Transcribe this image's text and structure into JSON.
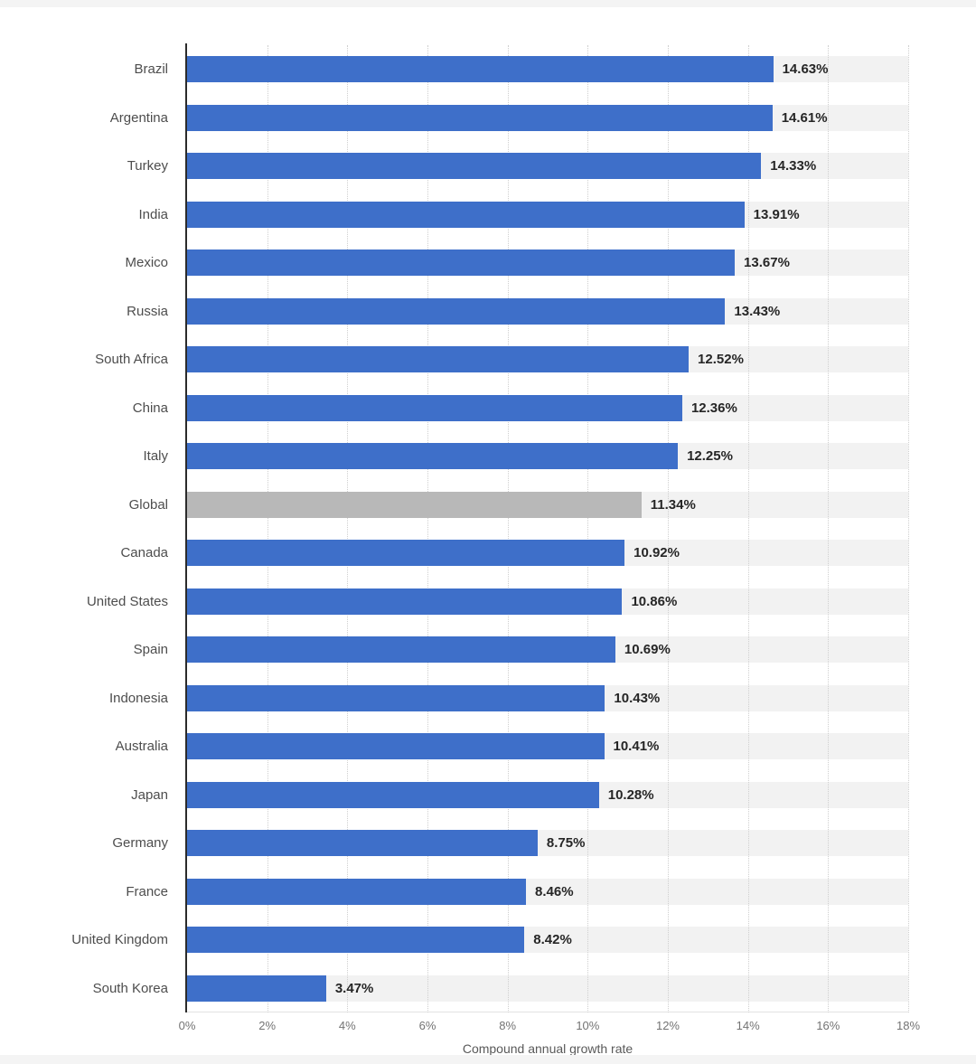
{
  "page": {
    "background": "#ffffff"
  },
  "chart_data": {
    "type": "bar",
    "orientation": "horizontal",
    "title": "",
    "xlabel": "Compound annual growth rate",
    "ylabel": "",
    "xlim": [
      0,
      18
    ],
    "grid": true,
    "legend": false,
    "categories": [
      "Brazil",
      "Argentina",
      "Turkey",
      "India",
      "Mexico",
      "Russia",
      "South Africa",
      "China",
      "Italy",
      "Global",
      "Canada",
      "United States",
      "Spain",
      "Indonesia",
      "Australia",
      "Japan",
      "Germany",
      "France",
      "United Kingdom",
      "South Korea"
    ],
    "values": [
      14.63,
      14.61,
      14.33,
      13.91,
      13.67,
      13.43,
      12.52,
      12.36,
      12.25,
      11.34,
      10.92,
      10.86,
      10.69,
      10.43,
      10.41,
      10.28,
      8.75,
      8.46,
      8.42,
      3.47
    ],
    "value_labels": [
      "14.63%",
      "14.61%",
      "14.33%",
      "13.91%",
      "13.67%",
      "13.43%",
      "12.52%",
      "12.36%",
      "12.25%",
      "11.34%",
      "10.92%",
      "10.86%",
      "10.69%",
      "10.43%",
      "10.41%",
      "10.28%",
      "8.75%",
      "8.46%",
      "8.42%",
      "3.47%"
    ],
    "highlight_category": "Global",
    "tick_values": [
      0,
      2,
      4,
      6,
      8,
      10,
      12,
      14,
      16,
      18
    ],
    "tick_labels": [
      "0%",
      "2%",
      "4%",
      "6%",
      "8%",
      "10%",
      "12%",
      "14%",
      "16%",
      "18%"
    ],
    "colors": {
      "bar": "#3e6fc9",
      "highlight_bar": "#b8b8b8",
      "track": "#f2f2f2",
      "gridline": "#cfcfcf",
      "axis_line": "#2b2b2b",
      "value_text": "#262626",
      "category_text": "#4d4d4d",
      "tick_text": "#737373",
      "axis_label_text": "#595959"
    }
  }
}
